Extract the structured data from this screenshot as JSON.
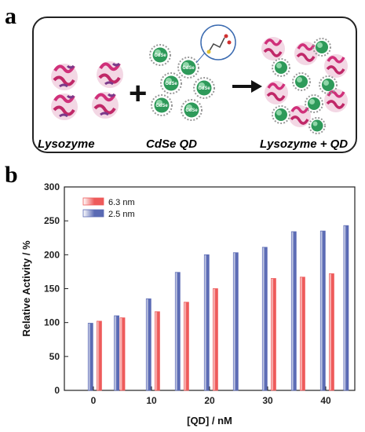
{
  "panel_a": {
    "letter": "a",
    "labels": {
      "lysozyme": "Lysozyme",
      "qd": "CdSe QD",
      "mixture": "Lysozyme + QD",
      "qd_core": "CdSe"
    },
    "operators": {
      "plus": "+"
    }
  },
  "panel_b": {
    "letter": "b"
  },
  "colors": {
    "red_series": "#ee5a5a",
    "blue_series": "#5a6ab4",
    "qd_core": "#2e9a5a",
    "protein": "#d0307a"
  },
  "chart_data": {
    "type": "bar",
    "xlabel": "[QD] / nM",
    "ylabel": "Relative Activity / %",
    "xlim": [
      -5,
      45
    ],
    "ylim": [
      0,
      300
    ],
    "xticks": [
      0,
      10,
      20,
      30,
      40
    ],
    "yticks": [
      0,
      50,
      100,
      150,
      200,
      250,
      300
    ],
    "legend_position": "top-left",
    "grid": false,
    "series": [
      {
        "name": "6.3 nm",
        "color": "#ee5a5a",
        "x": [
          1,
          5,
          11,
          16,
          21,
          31,
          36,
          41
        ],
        "values": [
          102,
          107,
          116,
          130,
          150,
          165,
          167,
          172
        ]
      },
      {
        "name": "2.5 nm",
        "color": "#5a6ab4",
        "x": [
          -0.5,
          4,
          9.5,
          14.5,
          19.5,
          24.5,
          29.5,
          34.5,
          39.5,
          43.5
        ],
        "values": [
          99,
          110,
          135,
          174,
          200,
          203,
          211,
          234,
          235,
          243
        ]
      }
    ]
  }
}
